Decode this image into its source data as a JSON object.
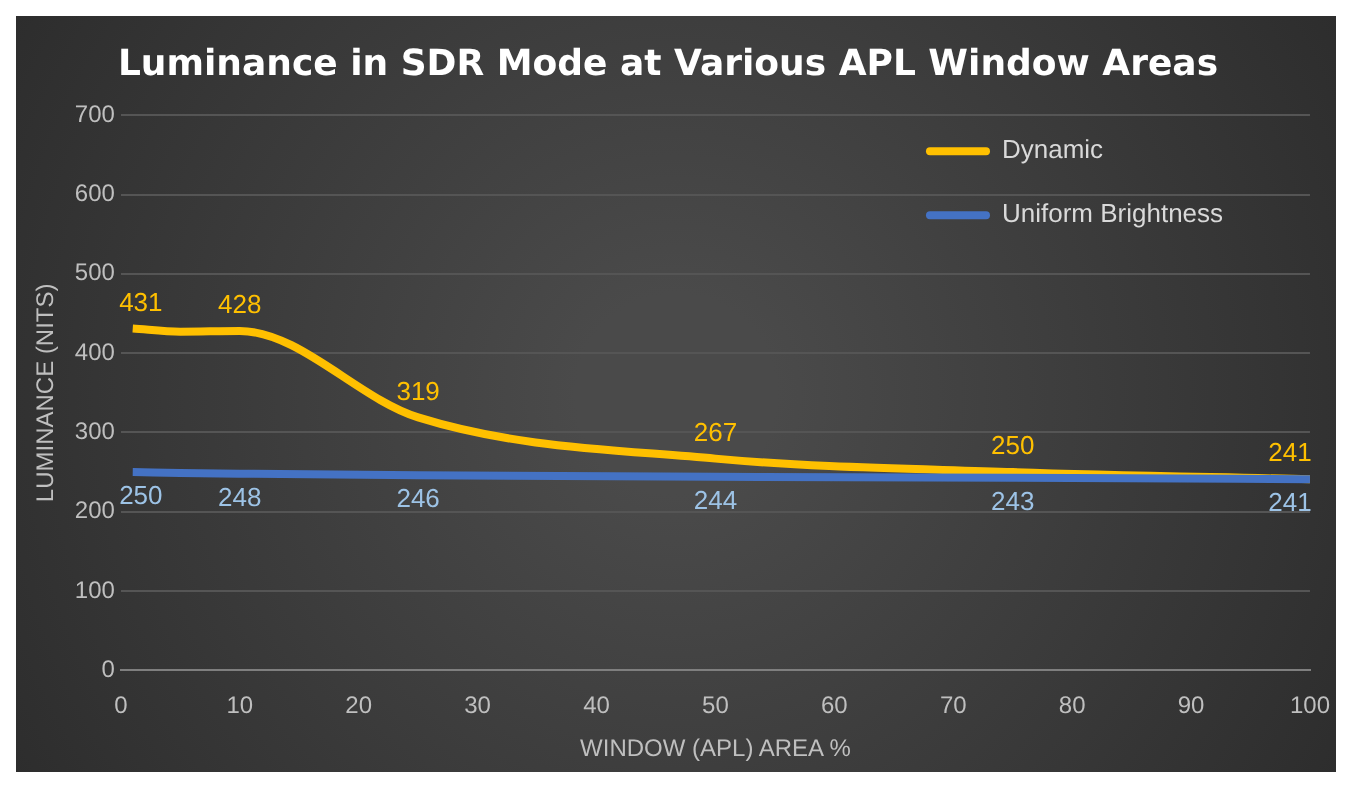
{
  "chart_data": {
    "type": "line",
    "title": "Luminance in SDR Mode at Various APL Window Areas",
    "xlabel": "WINDOW (APL) AREA %",
    "ylabel": "LUMINANCE (NITS)",
    "x": [
      1,
      5,
      10,
      25,
      50,
      75,
      100
    ],
    "series": [
      {
        "name": "Dynamic",
        "color": "#ffc000",
        "values": [
          431,
          427,
          428,
          319,
          267,
          250,
          241
        ],
        "value_labels": [
          "431",
          null,
          "428",
          "319",
          "267",
          "250",
          "241"
        ]
      },
      {
        "name": "Uniform Brightness",
        "color": "#4472c4",
        "values": [
          250,
          249,
          248,
          246,
          244,
          243,
          241
        ],
        "value_labels": [
          "250",
          null,
          "248",
          "246",
          "244",
          "243",
          "241"
        ]
      }
    ],
    "xlim": [
      0,
      100
    ],
    "xticks": [
      0,
      10,
      20,
      30,
      40,
      50,
      60,
      70,
      80,
      90,
      100
    ],
    "ylim": [
      0,
      700
    ],
    "yticks": [
      0,
      100,
      200,
      300,
      400,
      500,
      600,
      700
    ],
    "grid": "y",
    "legend": "top right",
    "marker": "none"
  }
}
